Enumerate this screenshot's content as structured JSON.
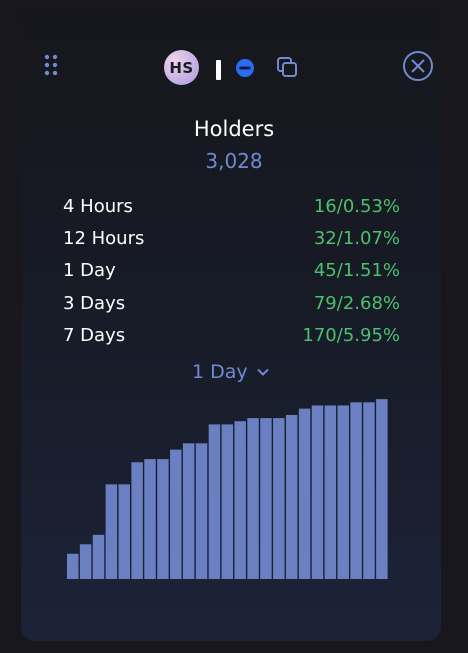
{
  "header": {
    "avatar_initials": "HS",
    "icons": [
      "drag-handle-icon",
      "blue-status-dot-icon",
      "copy-icon",
      "close-icon"
    ]
  },
  "title": "Holders",
  "holders_count": "3,028",
  "stats": [
    {
      "label": "4 Hours",
      "count": "16",
      "percent": "0.53%"
    },
    {
      "label": "12 Hours",
      "count": "32",
      "percent": "1.07%"
    },
    {
      "label": "1 Day",
      "count": "45",
      "percent": "1.51%"
    },
    {
      "label": "3 Days",
      "count": "79",
      "percent": "2.68%"
    },
    {
      "label": "7 Days",
      "count": "170",
      "percent": "5.95%"
    }
  ],
  "period_selector": {
    "selected": "1 Day"
  },
  "colors": {
    "accent": "#6f8ad0",
    "positive": "#4cc06e",
    "bar": "#6a80c2",
    "background": "#17171d"
  },
  "chart_data": {
    "type": "bar",
    "values": [
      2983,
      2986,
      2989,
      3005,
      3005,
      3012,
      3013,
      3013,
      3016,
      3018,
      3018,
      3024,
      3024,
      3025,
      3026,
      3026,
      3026,
      3027,
      3029,
      3030,
      3030,
      3030,
      3031,
      3031,
      3032
    ],
    "ylim": [
      2975,
      3033
    ]
  }
}
